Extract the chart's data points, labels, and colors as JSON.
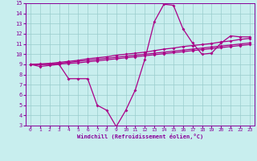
{
  "xlabel": "Windchill (Refroidissement éolien,°C)",
  "xlim": [
    -0.5,
    23.5
  ],
  "ylim": [
    3,
    15
  ],
  "xticks": [
    0,
    1,
    2,
    3,
    4,
    5,
    6,
    7,
    8,
    9,
    10,
    11,
    12,
    13,
    14,
    15,
    16,
    17,
    18,
    19,
    20,
    21,
    22,
    23
  ],
  "yticks": [
    3,
    4,
    5,
    6,
    7,
    8,
    9,
    10,
    11,
    12,
    13,
    14,
    15
  ],
  "bg_color": "#c8eeee",
  "line_color": "#aa0088",
  "grid_color": "#99cccc",
  "tick_color": "#880099",
  "line1_y": [
    9.0,
    8.8,
    8.9,
    9.0,
    7.6,
    7.6,
    7.6,
    5.0,
    4.5,
    2.9,
    4.5,
    6.5,
    9.5,
    13.2,
    14.9,
    14.8,
    12.5,
    11.1,
    10.0,
    10.1,
    11.1,
    11.8,
    11.7,
    11.7
  ],
  "line2_y": [
    9.0,
    9.0,
    9.0,
    9.05,
    9.1,
    9.15,
    9.25,
    9.35,
    9.45,
    9.55,
    9.65,
    9.75,
    9.85,
    9.95,
    10.05,
    10.15,
    10.25,
    10.35,
    10.45,
    10.55,
    10.65,
    10.75,
    10.85,
    10.95
  ],
  "line3_y": [
    9.0,
    9.0,
    9.05,
    9.1,
    9.2,
    9.3,
    9.4,
    9.5,
    9.6,
    9.7,
    9.8,
    9.9,
    10.0,
    10.1,
    10.2,
    10.3,
    10.4,
    10.5,
    10.6,
    10.7,
    10.8,
    10.9,
    11.0,
    11.1
  ],
  "line4_y": [
    9.0,
    9.05,
    9.1,
    9.2,
    9.3,
    9.4,
    9.55,
    9.65,
    9.75,
    9.9,
    10.0,
    10.1,
    10.2,
    10.35,
    10.5,
    10.6,
    10.75,
    10.85,
    10.95,
    11.05,
    11.2,
    11.3,
    11.45,
    11.55
  ]
}
